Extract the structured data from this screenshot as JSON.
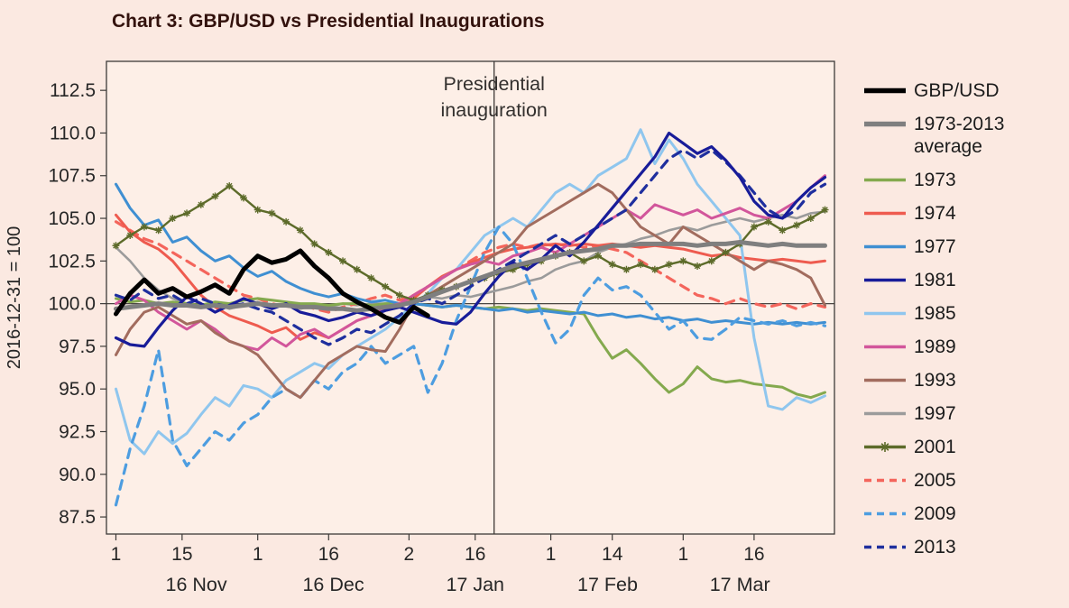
{
  "title": "Chart 3: GBP/USD vs Presidential Inaugurations",
  "chart_data": {
    "type": "line",
    "title": "Chart 3: GBP/USD vs Presidential Inaugurations",
    "ylabel": "2016-12-31 = 100",
    "x_unit": "days since 1 Nov 2016",
    "xlim": [
      -2,
      152
    ],
    "ylim": [
      86.5,
      114.2
    ],
    "grid": false,
    "legend_position": "right",
    "y_ticks": [
      112.5,
      110.0,
      107.5,
      105.0,
      102.5,
      100.0,
      97.5,
      95.0,
      92.5,
      90.0,
      87.5
    ],
    "x_ticks": [
      {
        "day": 0,
        "label": "1"
      },
      {
        "day": 14,
        "label": "15"
      },
      {
        "day": 30,
        "label": "1"
      },
      {
        "day": 45,
        "label": "16"
      },
      {
        "day": 62,
        "label": "2"
      },
      {
        "day": 76,
        "label": "16"
      },
      {
        "day": 92,
        "label": "1"
      },
      {
        "day": 105,
        "label": "14"
      },
      {
        "day": 120,
        "label": "1"
      },
      {
        "day": 135,
        "label": "16"
      }
    ],
    "x_month_labels": [
      {
        "day": 17,
        "label": "16 Nov"
      },
      {
        "day": 46,
        "label": "16 Dec"
      },
      {
        "day": 76,
        "label": "17 Jan"
      },
      {
        "day": 104,
        "label": "17 Feb"
      },
      {
        "day": 132,
        "label": "17 Mar"
      }
    ],
    "reference_line_y": 100,
    "annotation": {
      "day": 80,
      "lines": [
        "Presidential",
        "inauguration"
      ]
    },
    "colors": {
      "page_bg": "#fbe9e1",
      "plot_bg": "#fdefe7",
      "axis": "#3c3a38",
      "tick_text": "#262626",
      "ref_line": "#4a4542",
      "annotation_text": "#33302e",
      "title_text": "#33120d"
    },
    "draw_order": [
      "1997",
      "2005",
      "1974",
      "1973",
      "1977",
      "1985",
      "2009",
      "1989",
      "1993",
      "2001",
      "2013",
      "1981",
      "1973-2013 average",
      "GBP/USD"
    ],
    "x": [
      0,
      3,
      6,
      9,
      12,
      15,
      18,
      21,
      24,
      27,
      30,
      33,
      36,
      39,
      42,
      45,
      48,
      51,
      54,
      57,
      60,
      63,
      66,
      69,
      72,
      75,
      78,
      81,
      84,
      87,
      90,
      93,
      96,
      99,
      102,
      105,
      108,
      111,
      114,
      117,
      120,
      123,
      126,
      129,
      132,
      135,
      138,
      141,
      144,
      147,
      150
    ],
    "series": [
      {
        "name": "GBP/USD",
        "color": "#000000",
        "width": 5,
        "dash": null,
        "marker": null,
        "values": [
          99.4,
          100.6,
          101.4,
          100.6,
          100.9,
          100.4,
          100.7,
          101.1,
          100.6,
          102.0,
          102.8,
          102.4,
          102.6,
          103.1,
          102.2,
          101.5,
          100.6,
          100.1,
          99.7,
          99.2,
          98.9,
          99.8,
          99.3,
          null,
          null,
          null,
          null,
          null,
          null,
          null,
          null,
          null,
          null,
          null,
          null,
          null,
          null,
          null,
          null,
          null,
          null,
          null,
          null,
          null,
          null,
          null,
          null,
          null,
          null,
          null,
          null
        ]
      },
      {
        "name": "1973-2013 average",
        "color": "#7f7f7f",
        "width": 5,
        "dash": null,
        "marker": null,
        "values": [
          99.7,
          99.8,
          99.9,
          100.0,
          99.9,
          99.9,
          99.8,
          99.9,
          99.8,
          99.9,
          100.0,
          99.9,
          99.9,
          99.8,
          99.8,
          99.7,
          99.7,
          99.6,
          99.7,
          99.8,
          99.9,
          100.1,
          100.4,
          100.7,
          101.0,
          101.3,
          101.6,
          101.9,
          102.2,
          102.4,
          102.6,
          102.8,
          103.0,
          103.1,
          103.2,
          103.4,
          103.4,
          103.5,
          103.5,
          103.5,
          103.5,
          103.4,
          103.5,
          103.5,
          103.6,
          103.5,
          103.4,
          103.5,
          103.4,
          103.4,
          103.4
        ]
      },
      {
        "name": "1973",
        "color": "#84a94e",
        "width": 3,
        "dash": null,
        "marker": null,
        "values": [
          100.3,
          100.1,
          100.2,
          100.0,
          100.1,
          100.0,
          99.9,
          100.1,
          100.0,
          100.2,
          100.3,
          100.2,
          100.1,
          100.0,
          100.0,
          99.9,
          100.0,
          100.0,
          99.9,
          100.0,
          100.0,
          100.0,
          99.9,
          99.8,
          99.9,
          99.8,
          99.7,
          99.8,
          99.7,
          99.6,
          99.7,
          99.6,
          99.5,
          99.4,
          98.0,
          96.8,
          97.3,
          96.5,
          95.6,
          94.8,
          95.3,
          96.3,
          95.6,
          95.4,
          95.5,
          95.3,
          95.2,
          95.1,
          94.7,
          94.5,
          94.8
        ]
      },
      {
        "name": "1974",
        "color": "#ee5b4f",
        "width": 3,
        "dash": null,
        "marker": null,
        "values": [
          105.2,
          104.2,
          103.6,
          103.2,
          102.5,
          101.5,
          100.5,
          99.8,
          99.3,
          99.0,
          98.7,
          98.3,
          98.6,
          97.9,
          98.3,
          98.0,
          98.5,
          99.0,
          99.3,
          99.6,
          99.8,
          100.3,
          101.0,
          101.6,
          102.0,
          102.4,
          102.7,
          103.0,
          103.2,
          103.3,
          103.4,
          103.5,
          103.4,
          103.5,
          103.4,
          103.5,
          103.4,
          103.3,
          103.4,
          103.3,
          103.2,
          103.0,
          102.8,
          102.9,
          102.7,
          102.6,
          102.5,
          102.6,
          102.5,
          102.4,
          102.5
        ]
      },
      {
        "name": "1977",
        "color": "#3f8fd2",
        "width": 3,
        "dash": null,
        "marker": null,
        "values": [
          107.0,
          105.6,
          104.6,
          104.9,
          103.6,
          103.9,
          103.1,
          102.5,
          102.8,
          102.1,
          101.6,
          101.9,
          101.3,
          100.9,
          100.6,
          100.4,
          100.6,
          100.3,
          100.1,
          100.2,
          100.0,
          100.0,
          99.9,
          99.8,
          99.9,
          99.8,
          99.7,
          99.6,
          99.7,
          99.5,
          99.6,
          99.5,
          99.4,
          99.5,
          99.3,
          99.4,
          99.2,
          99.3,
          99.1,
          99.2,
          99.0,
          99.1,
          98.9,
          99.0,
          98.9,
          98.8,
          98.9,
          98.8,
          98.9,
          98.8,
          98.9
        ]
      },
      {
        "name": "1981",
        "color": "#181c99",
        "width": 3.2,
        "dash": null,
        "marker": null,
        "values": [
          98.0,
          97.6,
          97.5,
          98.6,
          99.6,
          100.4,
          100.0,
          99.5,
          99.9,
          100.3,
          100.0,
          99.7,
          100.0,
          99.5,
          99.3,
          99.0,
          99.2,
          99.5,
          99.3,
          99.6,
          99.8,
          99.5,
          99.2,
          98.9,
          98.8,
          99.5,
          100.6,
          101.6,
          102.4,
          102.0,
          102.6,
          103.4,
          102.8,
          103.6,
          104.6,
          105.6,
          106.6,
          107.6,
          108.6,
          110.0,
          109.4,
          108.8,
          109.2,
          108.4,
          107.4,
          106.0,
          105.2,
          105.0,
          106.0,
          106.8,
          107.4
        ]
      },
      {
        "name": "1985",
        "color": "#8fc6ee",
        "width": 3,
        "dash": null,
        "marker": null,
        "values": [
          95.0,
          92.0,
          91.2,
          92.5,
          91.8,
          92.4,
          93.5,
          94.5,
          94.0,
          95.2,
          95.0,
          94.5,
          95.5,
          96.0,
          96.5,
          96.2,
          97.0,
          97.5,
          98.0,
          98.5,
          99.2,
          100.0,
          100.6,
          101.5,
          102.0,
          103.0,
          104.0,
          104.5,
          105.0,
          104.5,
          105.5,
          106.5,
          107.0,
          106.5,
          107.5,
          108.0,
          108.5,
          110.2,
          108.2,
          109.6,
          108.5,
          107.0,
          106.0,
          105.0,
          104.0,
          98.0,
          94.0,
          93.8,
          94.5,
          94.2,
          94.6
        ]
      },
      {
        "name": "1989",
        "color": "#d2569b",
        "width": 3,
        "dash": null,
        "marker": null,
        "values": [
          100.0,
          100.5,
          100.2,
          99.5,
          99.0,
          98.5,
          99.0,
          98.5,
          97.8,
          97.5,
          97.3,
          98.0,
          97.5,
          98.2,
          98.5,
          98.0,
          98.5,
          99.0,
          99.3,
          99.8,
          100.0,
          100.5,
          101.0,
          101.5,
          102.0,
          102.3,
          102.5,
          102.3,
          102.8,
          103.0,
          103.3,
          103.0,
          103.5,
          104.0,
          104.5,
          105.0,
          105.5,
          105.0,
          105.8,
          105.5,
          105.2,
          105.5,
          105.0,
          105.3,
          105.6,
          105.2,
          105.0,
          105.5,
          106.0,
          106.8,
          107.5
        ]
      },
      {
        "name": "1993",
        "color": "#a26c5e",
        "width": 3,
        "dash": null,
        "marker": null,
        "values": [
          97.0,
          98.5,
          99.5,
          99.8,
          99.3,
          98.8,
          99.0,
          98.3,
          97.8,
          97.5,
          97.0,
          96.0,
          95.0,
          94.5,
          95.5,
          96.5,
          97.0,
          97.5,
          97.3,
          97.2,
          98.5,
          100.0,
          100.5,
          101.0,
          101.5,
          102.0,
          102.5,
          103.0,
          103.5,
          104.5,
          105.0,
          105.5,
          106.0,
          106.5,
          107.0,
          106.5,
          105.5,
          104.5,
          104.0,
          103.5,
          104.5,
          104.0,
          103.5,
          103.0,
          102.5,
          102.0,
          102.5,
          102.3,
          102.0,
          101.5,
          99.9
        ]
      },
      {
        "name": "1997",
        "color": "#9b9b9b",
        "width": 2.6,
        "dash": null,
        "marker": null,
        "values": [
          103.3,
          102.5,
          101.5,
          100.8,
          100.3,
          100.0,
          99.8,
          100.0,
          99.7,
          99.9,
          100.1,
          99.8,
          100.0,
          99.7,
          99.9,
          99.8,
          100.0,
          99.9,
          100.0,
          100.0,
          100.0,
          100.2,
          100.4,
          100.3,
          100.5,
          100.4,
          100.6,
          100.8,
          101.0,
          101.3,
          101.5,
          102.0,
          102.3,
          102.5,
          103.0,
          103.3,
          103.5,
          103.8,
          104.0,
          104.3,
          104.5,
          104.3,
          104.6,
          104.8,
          105.0,
          104.8,
          105.0,
          105.2,
          105.0,
          105.3,
          105.4
        ]
      },
      {
        "name": "2001",
        "color": "#5d6b2a",
        "width": 2.4,
        "dash": null,
        "marker": "star",
        "values": [
          103.4,
          104.0,
          104.5,
          104.3,
          105.0,
          105.3,
          105.8,
          106.3,
          106.9,
          106.2,
          105.5,
          105.3,
          104.8,
          104.3,
          103.5,
          103.0,
          102.5,
          102.0,
          101.5,
          101.0,
          100.5,
          100.2,
          100.5,
          100.8,
          101.0,
          101.3,
          101.5,
          101.8,
          102.0,
          102.3,
          102.5,
          102.8,
          103.0,
          102.5,
          102.8,
          102.3,
          102.0,
          102.3,
          102.0,
          102.3,
          102.5,
          102.2,
          102.5,
          103.0,
          103.5,
          104.5,
          104.8,
          104.3,
          104.6,
          105.0,
          105.5
        ]
      },
      {
        "name": "2005",
        "color": "#f4655c",
        "width": 3.2,
        "dash": "10 8",
        "marker": null,
        "values": [
          104.8,
          104.3,
          103.8,
          103.5,
          103.0,
          102.5,
          102.0,
          101.5,
          101.0,
          100.5,
          100.3,
          100.0,
          99.8,
          100.0,
          99.7,
          99.5,
          99.8,
          100.0,
          100.3,
          100.5,
          100.2,
          100.5,
          101.0,
          101.5,
          102.0,
          102.5,
          103.0,
          103.3,
          103.5,
          103.3,
          103.5,
          103.4,
          103.5,
          103.3,
          103.4,
          103.2,
          103.0,
          102.5,
          102.0,
          101.5,
          101.0,
          100.5,
          100.3,
          100.0,
          100.3,
          100.0,
          99.8,
          100.0,
          99.7,
          100.0,
          99.8
        ]
      },
      {
        "name": "2009",
        "color": "#4d9de0",
        "width": 3.2,
        "dash": "10 8",
        "marker": null,
        "values": [
          88.2,
          91.5,
          94.0,
          97.3,
          92.0,
          90.5,
          91.5,
          92.5,
          92.0,
          93.0,
          93.5,
          94.5,
          95.0,
          94.5,
          95.5,
          95.0,
          96.0,
          96.5,
          97.5,
          96.5,
          97.0,
          97.5,
          94.8,
          96.5,
          99.0,
          101.0,
          103.0,
          104.5,
          103.5,
          101.5,
          99.5,
          97.7,
          98.5,
          100.5,
          101.5,
          100.8,
          101.0,
          100.5,
          99.5,
          98.5,
          99.0,
          98.0,
          97.9,
          98.5,
          99.2,
          99.0,
          98.8,
          99.0,
          98.7,
          98.9,
          98.7
        ]
      },
      {
        "name": "2013",
        "color": "#1f2f9e",
        "width": 3.2,
        "dash": "10 8",
        "marker": null,
        "values": [
          100.5,
          100.2,
          100.8,
          100.3,
          100.5,
          100.0,
          100.3,
          100.0,
          99.8,
          100.0,
          99.7,
          99.5,
          99.0,
          98.5,
          98.0,
          97.6,
          98.0,
          98.5,
          98.3,
          98.8,
          99.3,
          100.0,
          100.3,
          100.0,
          100.5,
          101.0,
          101.5,
          102.0,
          102.5,
          103.0,
          103.5,
          104.0,
          103.5,
          104.0,
          104.5,
          105.0,
          105.5,
          106.5,
          107.5,
          108.5,
          109.0,
          108.5,
          109.0,
          108.3,
          107.5,
          106.5,
          105.5,
          105.0,
          105.5,
          106.5,
          107.0
        ]
      }
    ]
  },
  "legend": {
    "items": [
      {
        "label": "GBP/USD",
        "series": "GBP/USD"
      },
      {
        "label": "1973-2013 average",
        "series": "1973-2013 average"
      },
      {
        "label": "1973",
        "series": "1973"
      },
      {
        "label": "1974",
        "series": "1974"
      },
      {
        "label": "1977",
        "series": "1977"
      },
      {
        "label": "1981",
        "series": "1981"
      },
      {
        "label": "1985",
        "series": "1985"
      },
      {
        "label": "1989",
        "series": "1989"
      },
      {
        "label": "1993",
        "series": "1993"
      },
      {
        "label": "1997",
        "series": "1997"
      },
      {
        "label": "2001",
        "series": "2001"
      },
      {
        "label": "2005",
        "series": "2005"
      },
      {
        "label": "2009",
        "series": "2009"
      },
      {
        "label": "2013",
        "series": "2013"
      }
    ]
  }
}
